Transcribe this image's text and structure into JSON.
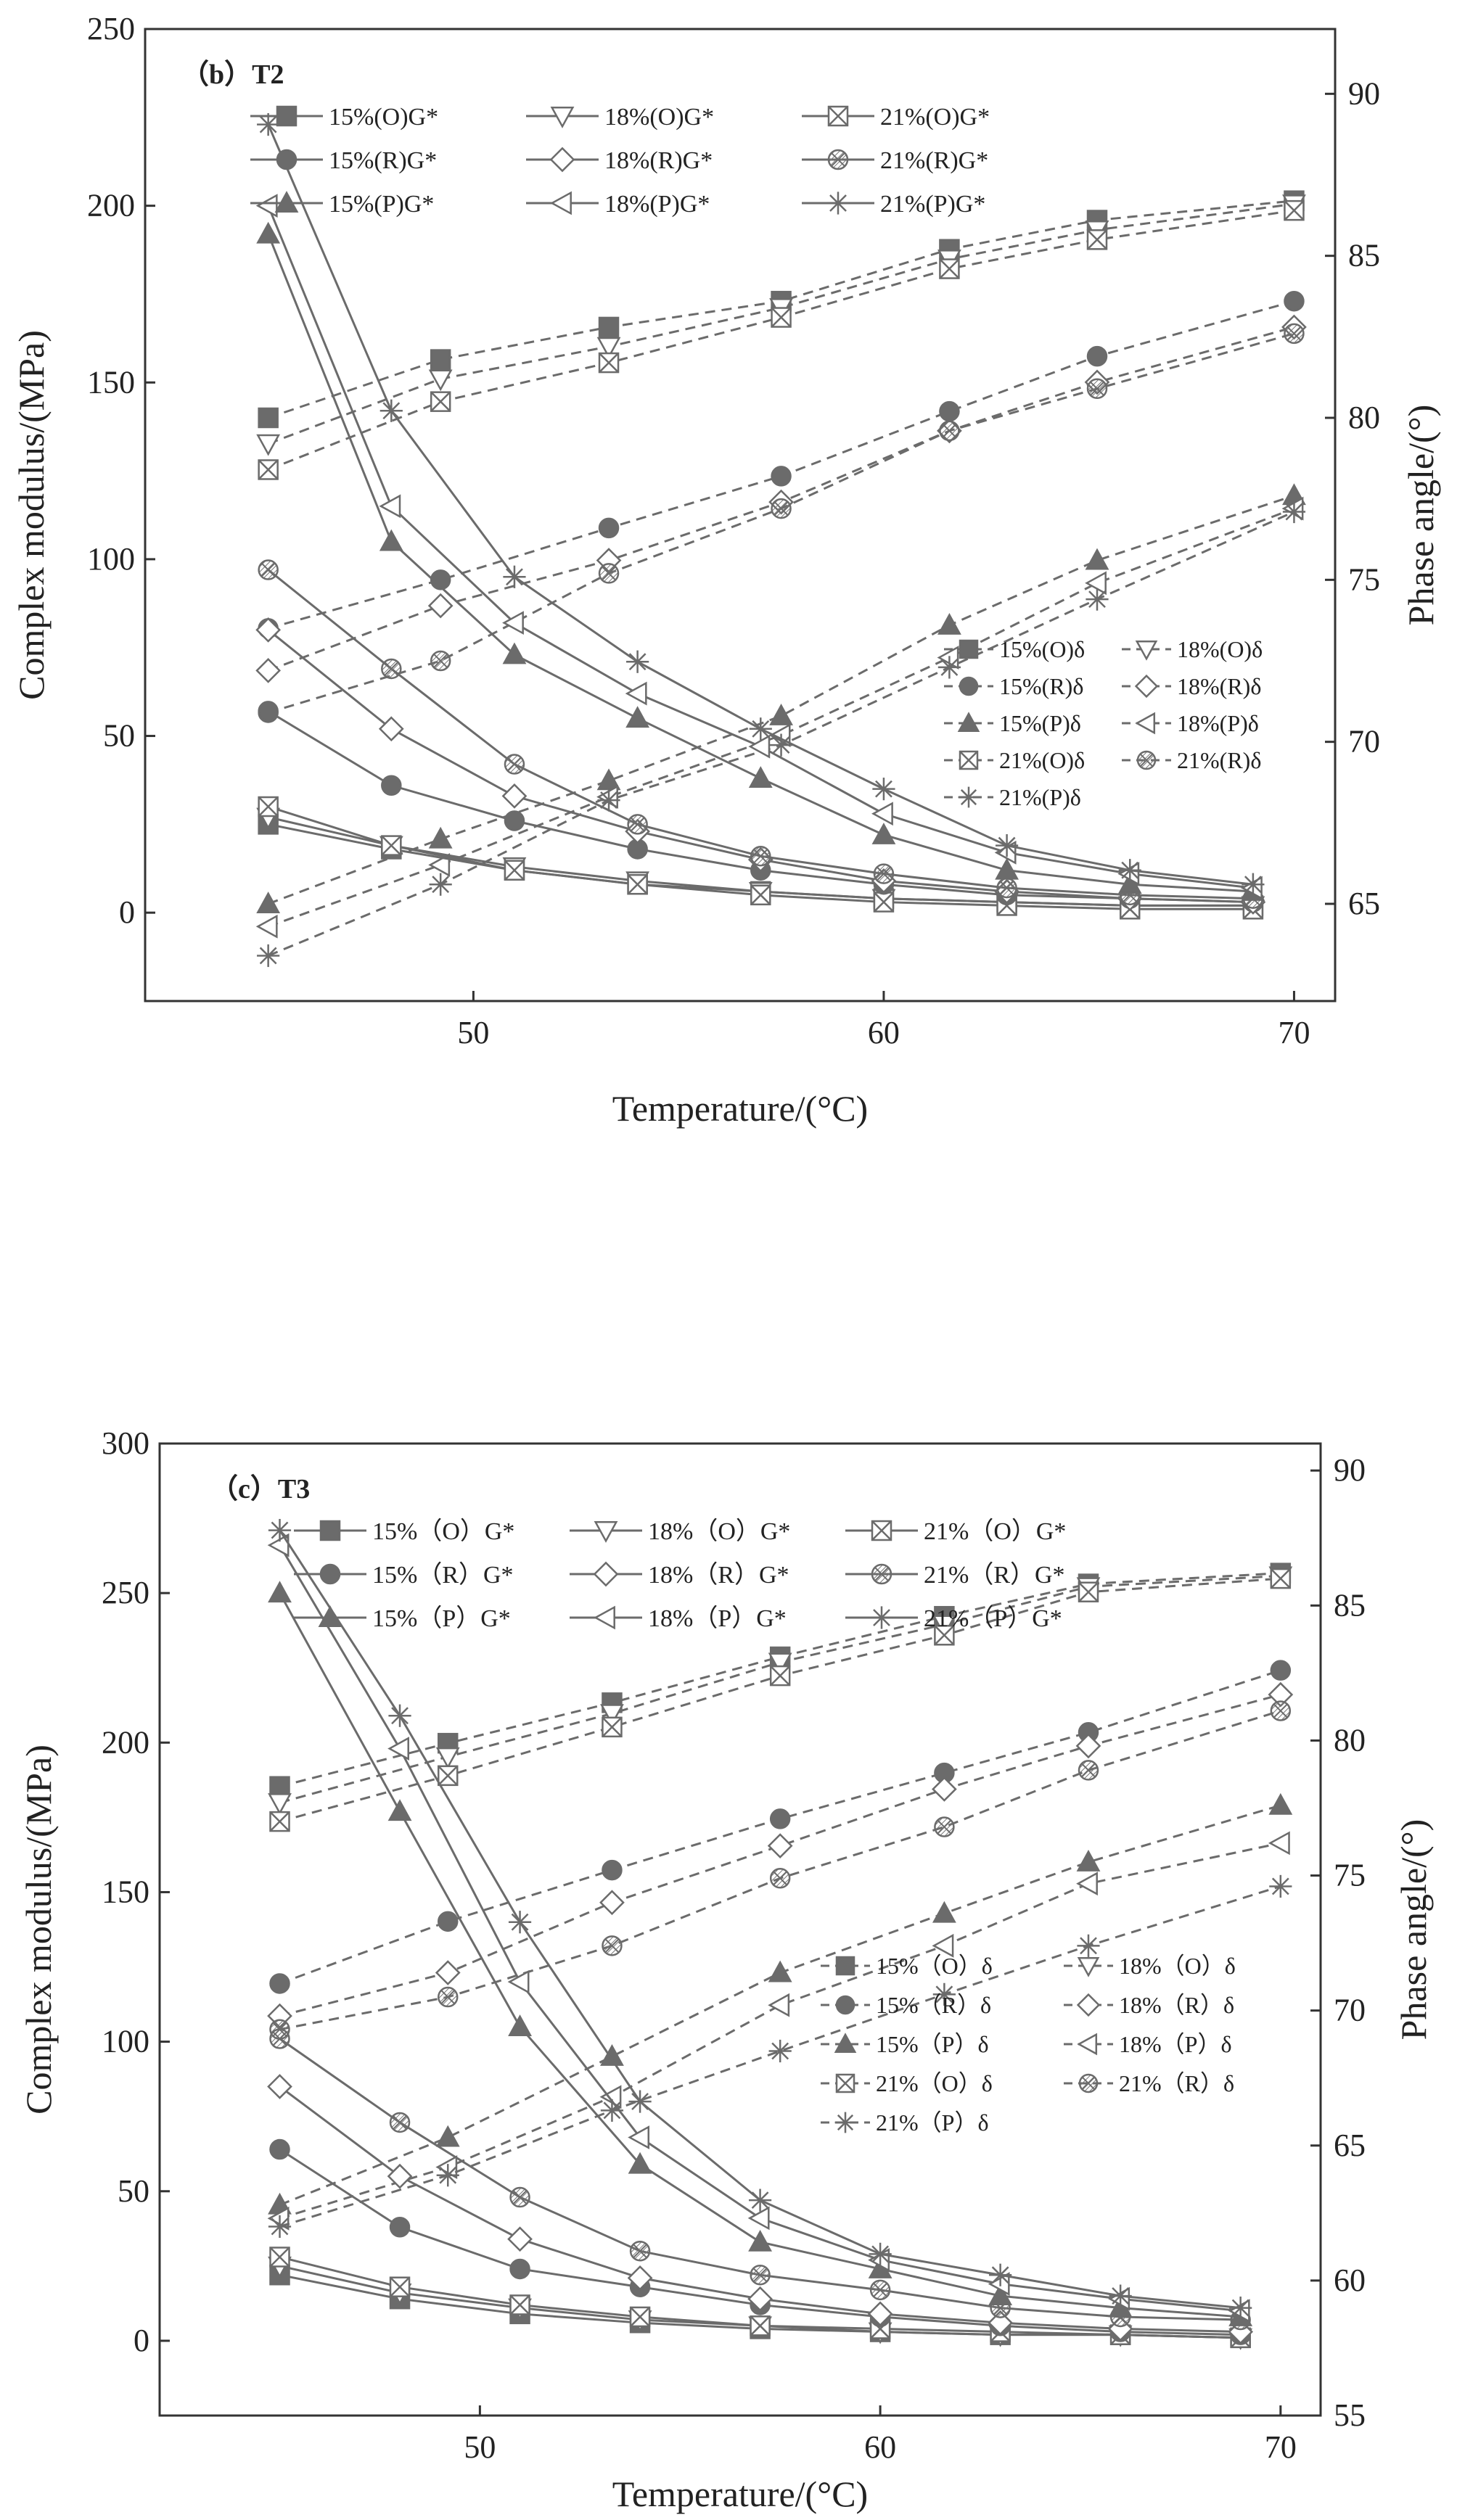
{
  "chart_data": [
    {
      "type": "line",
      "title": "（b）T2",
      "xlabel": "Temperature/(°C)",
      "ylabel": "Complex modulus/(MPa)",
      "y2label": "Phase angle/(°)",
      "xlim": [
        42,
        71
      ],
      "ylim": [
        -25,
        250
      ],
      "y2lim": [
        62,
        92
      ],
      "xticks": [
        50,
        60,
        70
      ],
      "yticks": [
        0,
        50,
        100,
        150,
        200,
        250
      ],
      "y2ticks": [
        65,
        70,
        75,
        80,
        85,
        90
      ],
      "x": [
        45,
        48,
        51,
        54,
        57,
        60,
        63,
        66,
        69
      ],
      "x_delta": [
        45,
        49.2,
        53.3,
        57.5,
        61.6,
        65.2,
        70
      ],
      "series_g": [
        {
          "name": "15%(O)G*",
          "marker": "square",
          "values": [
            25,
            18,
            12,
            8,
            6,
            4,
            3,
            2,
            2
          ]
        },
        {
          "name": "18%(O)G*",
          "marker": "tri-down",
          "values": [
            27,
            19,
            13,
            9,
            6,
            4,
            3,
            2,
            2
          ]
        },
        {
          "name": "21%(O)G*",
          "marker": "x-box",
          "values": [
            30,
            19,
            12,
            8,
            5,
            3,
            2,
            1,
            1
          ]
        },
        {
          "name": "15%(R)G*",
          "marker": "circle",
          "values": [
            57,
            36,
            26,
            18,
            12,
            8,
            5,
            4,
            3
          ]
        },
        {
          "name": "18%(R)G*",
          "marker": "diamond",
          "values": [
            80,
            52,
            33,
            23,
            15,
            9,
            6,
            4,
            3
          ]
        },
        {
          "name": "21%(R)G*",
          "marker": "hatched",
          "values": [
            97,
            69,
            42,
            25,
            16,
            11,
            7,
            5,
            4
          ]
        },
        {
          "name": "15%(P)G*",
          "marker": "tri-up",
          "values": [
            192,
            105,
            73,
            55,
            38,
            22,
            12,
            8,
            6
          ]
        },
        {
          "name": "18%(P)G*",
          "marker": "tri-left",
          "values": [
            200,
            115,
            82,
            62,
            47,
            28,
            17,
            11,
            7
          ]
        },
        {
          "name": "21%(P)G*",
          "marker": "star",
          "values": [
            223,
            142,
            95,
            71,
            52,
            35,
            19,
            12,
            8
          ]
        }
      ],
      "series_delta": [
        {
          "name": "15%(O)δ",
          "marker": "square",
          "values": [
            80,
            81.8,
            82.8,
            83.6,
            85.2,
            86.1,
            86.7
          ]
        },
        {
          "name": "18%(O)δ",
          "marker": "tri-down",
          "values": [
            79.2,
            81.2,
            82.2,
            83.4,
            84.9,
            85.8,
            86.6
          ]
        },
        {
          "name": "21%(O)δ",
          "marker": "x-box",
          "values": [
            78.4,
            80.5,
            81.7,
            83.1,
            84.6,
            85.5,
            86.4
          ]
        },
        {
          "name": "15%(R)δ",
          "marker": "circle",
          "values": [
            73.5,
            75,
            76.6,
            78.2,
            80.2,
            81.9,
            83.6
          ]
        },
        {
          "name": "18%(R)δ",
          "marker": "diamond",
          "values": [
            72.2,
            74.2,
            75.6,
            77.4,
            79.6,
            81.1,
            82.8
          ]
        },
        {
          "name": "21%(R)δ",
          "marker": "hatched",
          "values": [
            70.9,
            72.5,
            75.2,
            77.2,
            79.6,
            80.9,
            82.6
          ]
        },
        {
          "name": "15%(P)δ",
          "marker": "tri-up",
          "values": [
            65,
            67,
            68.8,
            70.8,
            73.6,
            75.6,
            77.6
          ]
        },
        {
          "name": "18%(P)δ",
          "marker": "tri-left",
          "values": [
            64.3,
            66.2,
            68.3,
            70.2,
            72.6,
            74.9,
            77.2
          ]
        },
        {
          "name": "21%(P)δ",
          "marker": "star",
          "values": [
            63.4,
            65.6,
            68.2,
            69.9,
            72.3,
            74.4,
            77.1
          ]
        }
      ]
    },
    {
      "type": "line",
      "title": "（c）T3",
      "xlabel": "Temperature/(°C)",
      "ylabel": "Complex modulus/(MPa)",
      "y2label": "Phase angle/(°)",
      "xlim": [
        42,
        71
      ],
      "ylim": [
        -25,
        300
      ],
      "y2lim": [
        55,
        91
      ],
      "xticks": [
        50,
        60,
        70
      ],
      "yticks": [
        0,
        50,
        100,
        150,
        200,
        250,
        300
      ],
      "y2ticks": [
        55,
        60,
        65,
        70,
        75,
        80,
        85,
        90
      ],
      "x": [
        45,
        48,
        51,
        54,
        57,
        60,
        63,
        66,
        69
      ],
      "x_delta": [
        45,
        49.2,
        53.3,
        57.5,
        61.6,
        65.2,
        70
      ],
      "series_g": [
        {
          "name": "15%（O）G*",
          "marker": "square",
          "values": [
            22,
            14,
            9,
            6,
            4,
            3,
            2,
            2,
            1
          ]
        },
        {
          "name": "18%（O）G*",
          "marker": "tri-down",
          "values": [
            25,
            16,
            11,
            7,
            5,
            3,
            2,
            2,
            1
          ]
        },
        {
          "name": "21%（O）G*",
          "marker": "x-box",
          "values": [
            28,
            18,
            12,
            8,
            5,
            4,
            3,
            2,
            1
          ]
        },
        {
          "name": "15%（R）G*",
          "marker": "circle",
          "values": [
            64,
            38,
            24,
            18,
            12,
            8,
            5,
            3,
            2
          ]
        },
        {
          "name": "18%（R）G*",
          "marker": "diamond",
          "values": [
            85,
            55,
            34,
            21,
            14,
            9,
            6,
            4,
            3
          ]
        },
        {
          "name": "21%（R）G*",
          "marker": "hatched",
          "values": [
            101,
            73,
            48,
            30,
            22,
            17,
            11,
            8,
            7
          ]
        },
        {
          "name": "15%（P）G*",
          "marker": "tri-up",
          "values": [
            250,
            177,
            105,
            59,
            33,
            24,
            15,
            11,
            8
          ]
        },
        {
          "name": "18%（P）G*",
          "marker": "tri-left",
          "values": [
            266,
            198,
            120,
            68,
            41,
            27,
            19,
            14,
            10
          ]
        },
        {
          "name": "21%（P）G*",
          "marker": "star",
          "values": [
            271,
            209,
            140,
            80,
            47,
            29,
            22,
            15,
            11
          ]
        }
      ],
      "series_delta": [
        {
          "name": "15%（O）δ",
          "marker": "square",
          "values": [
            78.3,
            79.9,
            81.4,
            83.1,
            84.6,
            85.8,
            86.2
          ]
        },
        {
          "name": "18%（O）δ",
          "marker": "tri-down",
          "values": [
            77.7,
            79.4,
            81,
            82.9,
            84.3,
            85.7,
            86.1
          ]
        },
        {
          "name": "21%（O）δ",
          "marker": "x-box",
          "values": [
            77,
            78.7,
            80.5,
            82.4,
            83.9,
            85.5,
            86
          ]
        },
        {
          "name": "15%（R）δ",
          "marker": "circle",
          "values": [
            71,
            73.3,
            75.2,
            77.1,
            78.8,
            80.3,
            82.6
          ]
        },
        {
          "name": "18%（R）δ",
          "marker": "diamond",
          "values": [
            69.8,
            71.4,
            74,
            76.1,
            78.2,
            79.8,
            81.7
          ]
        },
        {
          "name": "21%（R）δ",
          "marker": "hatched",
          "values": [
            69.3,
            70.5,
            72.4,
            74.9,
            76.8,
            78.9,
            81.1
          ]
        },
        {
          "name": "15%（P）δ",
          "marker": "tri-up",
          "values": [
            62.8,
            65.3,
            68.3,
            71.4,
            73.6,
            75.5,
            77.6
          ]
        },
        {
          "name": "18%（P）δ",
          "marker": "tri-left",
          "values": [
            62.3,
            64.2,
            66.8,
            70.2,
            72.4,
            74.7,
            76.2
          ]
        },
        {
          "name": "21%（P）δ",
          "marker": "star",
          "values": [
            62,
            63.9,
            66.3,
            68.5,
            70.6,
            72.4,
            74.6
          ]
        }
      ]
    }
  ]
}
